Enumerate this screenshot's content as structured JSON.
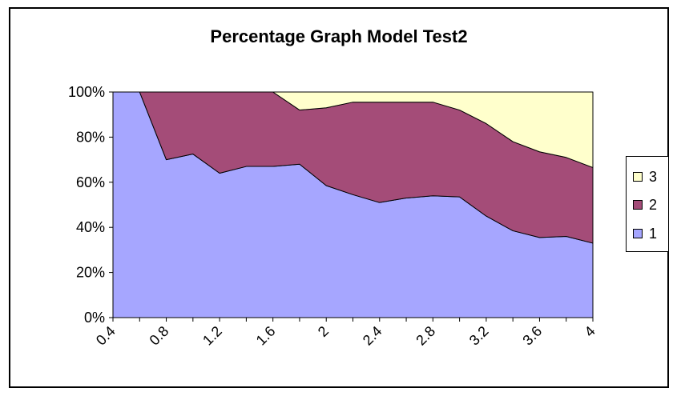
{
  "chart_data": {
    "type": "area",
    "stacked": true,
    "percent": true,
    "title": "Percentage Graph Model Test2",
    "x": [
      0.4,
      0.6,
      0.8,
      1.0,
      1.2,
      1.4,
      1.6,
      1.8,
      2.0,
      2.2,
      2.4,
      2.6,
      2.8,
      3.0,
      3.2,
      3.4,
      3.6,
      3.8,
      4.0
    ],
    "x_tick_labels": [
      "0.4",
      "0.8",
      "1.2",
      "1.6",
      "2",
      "2.4",
      "2.8",
      "3.2",
      "3.6",
      "4"
    ],
    "y_tick_labels": [
      "0%",
      "20%",
      "40%",
      "60%",
      "80%",
      "100%"
    ],
    "ylim": [
      0,
      100
    ],
    "series": [
      {
        "name": "1",
        "color": "#a6a6ff",
        "values": [
          100,
          100,
          70,
          72.5,
          64,
          67,
          67,
          68,
          58.5,
          54.5,
          51,
          53,
          54,
          53.5,
          45,
          38.5,
          35.5,
          36,
          33
        ]
      },
      {
        "name": "2",
        "color": "#a44c78",
        "values": [
          0,
          0,
          30,
          27.5,
          36,
          33,
          33,
          24,
          34.5,
          41,
          44.5,
          42.5,
          41.5,
          38.5,
          41,
          39.5,
          38,
          35,
          33.5
        ]
      },
      {
        "name": "3",
        "color": "#ffffcc",
        "values": [
          0,
          0,
          0,
          0,
          0,
          0,
          0,
          8,
          7,
          4.5,
          4.5,
          4.5,
          4.5,
          8,
          14,
          22,
          26.5,
          29,
          33.5
        ]
      }
    ],
    "legend": {
      "position": "right",
      "entries": [
        "3",
        "2",
        "1"
      ]
    },
    "grid": false
  }
}
